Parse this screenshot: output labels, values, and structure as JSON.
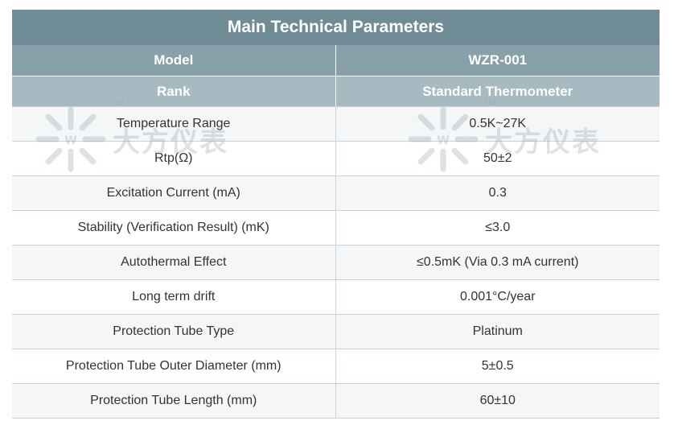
{
  "title": "Main Technical Parameters",
  "header": [
    {
      "label": "Model",
      "value": "WZR-001"
    },
    {
      "label": "Rank",
      "value": "Standard Thermometer"
    }
  ],
  "rows": [
    {
      "label": "Temperature Range",
      "value": "0.5K~27K"
    },
    {
      "label": "Rtp(Ω)",
      "value": "50±2"
    },
    {
      "label": "Excitation Current (mA)",
      "value": "0.3"
    },
    {
      "label": "Stability (Verification Result) (mK)",
      "value": "≤3.0"
    },
    {
      "label": "Autothermal Effect",
      "value": "≤0.5mK (Via 0.3 mA current)"
    },
    {
      "label": "Long term drift",
      "value": "0.001°C/year"
    },
    {
      "label": "Protection Tube Type",
      "value": "Platinum"
    },
    {
      "label": "Protection Tube Outer Diameter (mm)",
      "value": "5±0.5"
    },
    {
      "label": "Protection Tube Length (mm)",
      "value": "60±10"
    }
  ],
  "watermark": {
    "text": "大方仪表",
    "tm": "TM"
  }
}
